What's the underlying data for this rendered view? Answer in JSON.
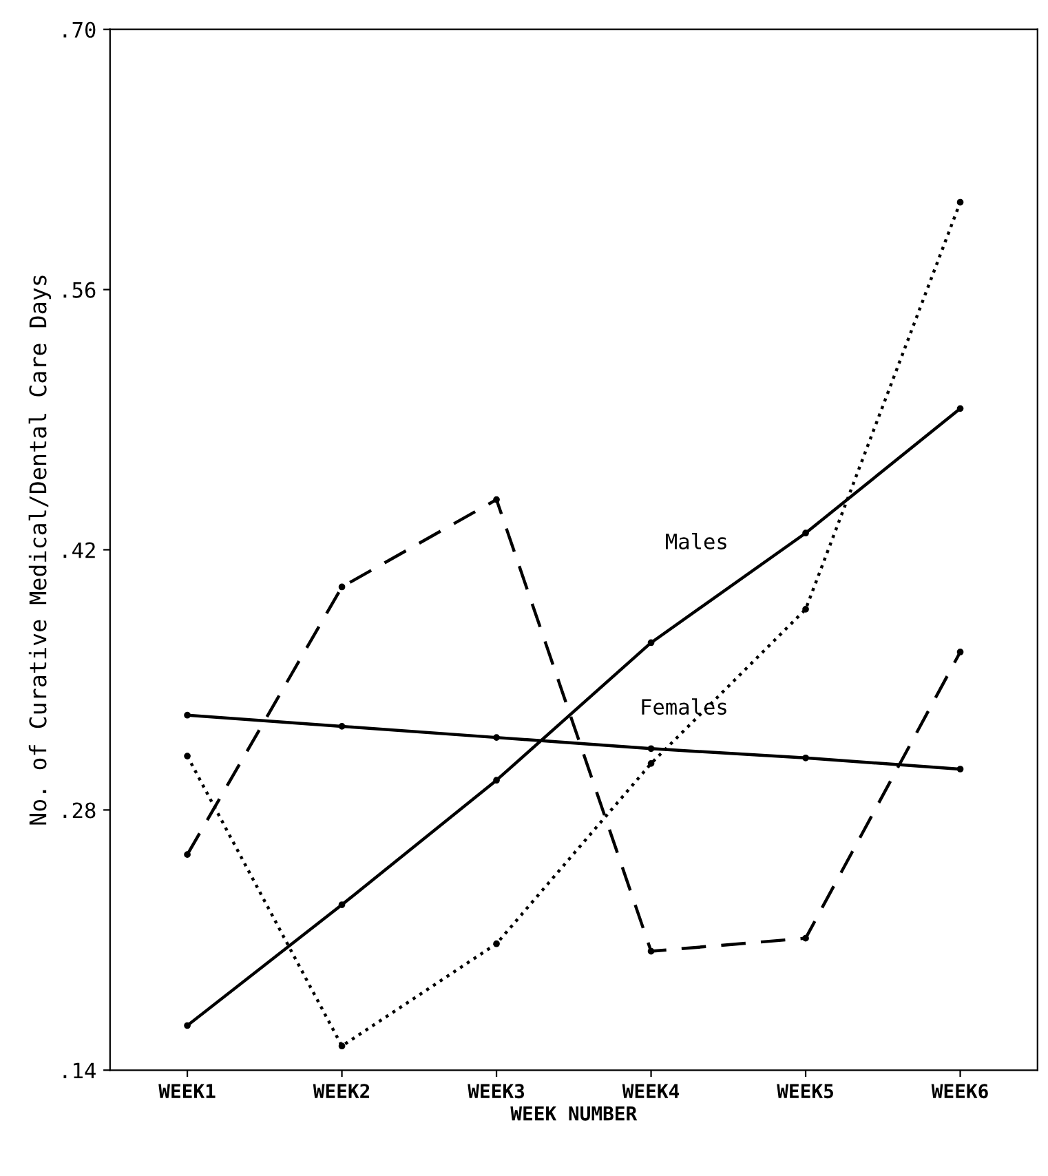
{
  "chart_data": {
    "type": "line",
    "xlabel": "WEEK NUMBER",
    "ylabel": "No. of Curative Medical/Dental Care Days",
    "categories": [
      "WEEK1",
      "WEEK2",
      "WEEK3",
      "WEEK4",
      "WEEK5",
      "WEEK6"
    ],
    "series": [
      {
        "name": "Males",
        "color": "#000000",
        "line_style": "solid",
        "values": [
          0.164,
          0.229,
          0.296,
          0.37,
          0.429,
          0.496
        ]
      },
      {
        "name": "Females",
        "color": "#000000",
        "line_style": "solid",
        "values": [
          0.331,
          0.325,
          0.319,
          0.313,
          0.308,
          0.302
        ]
      },
      {
        "color": "#000000",
        "line_style": "dashed",
        "values": [
          0.256,
          0.4,
          0.447,
          0.204,
          0.211,
          0.365
        ]
      },
      {
        "color": "#000000",
        "line_style": "dotted",
        "values": [
          0.309,
          0.153,
          0.208,
          0.305,
          0.388,
          0.607
        ]
      }
    ],
    "marker": "circle",
    "ylim": [
      0.14,
      0.7
    ],
    "yticks": [
      {
        "value": 0.14,
        "label": ".14"
      },
      {
        "value": 0.28,
        "label": ".28"
      },
      {
        "value": 0.42,
        "label": ".42"
      },
      {
        "value": 0.56,
        "label": ".56"
      },
      {
        "value": 0.7,
        "label": ".70"
      }
    ],
    "grid": false,
    "legend": false
  }
}
